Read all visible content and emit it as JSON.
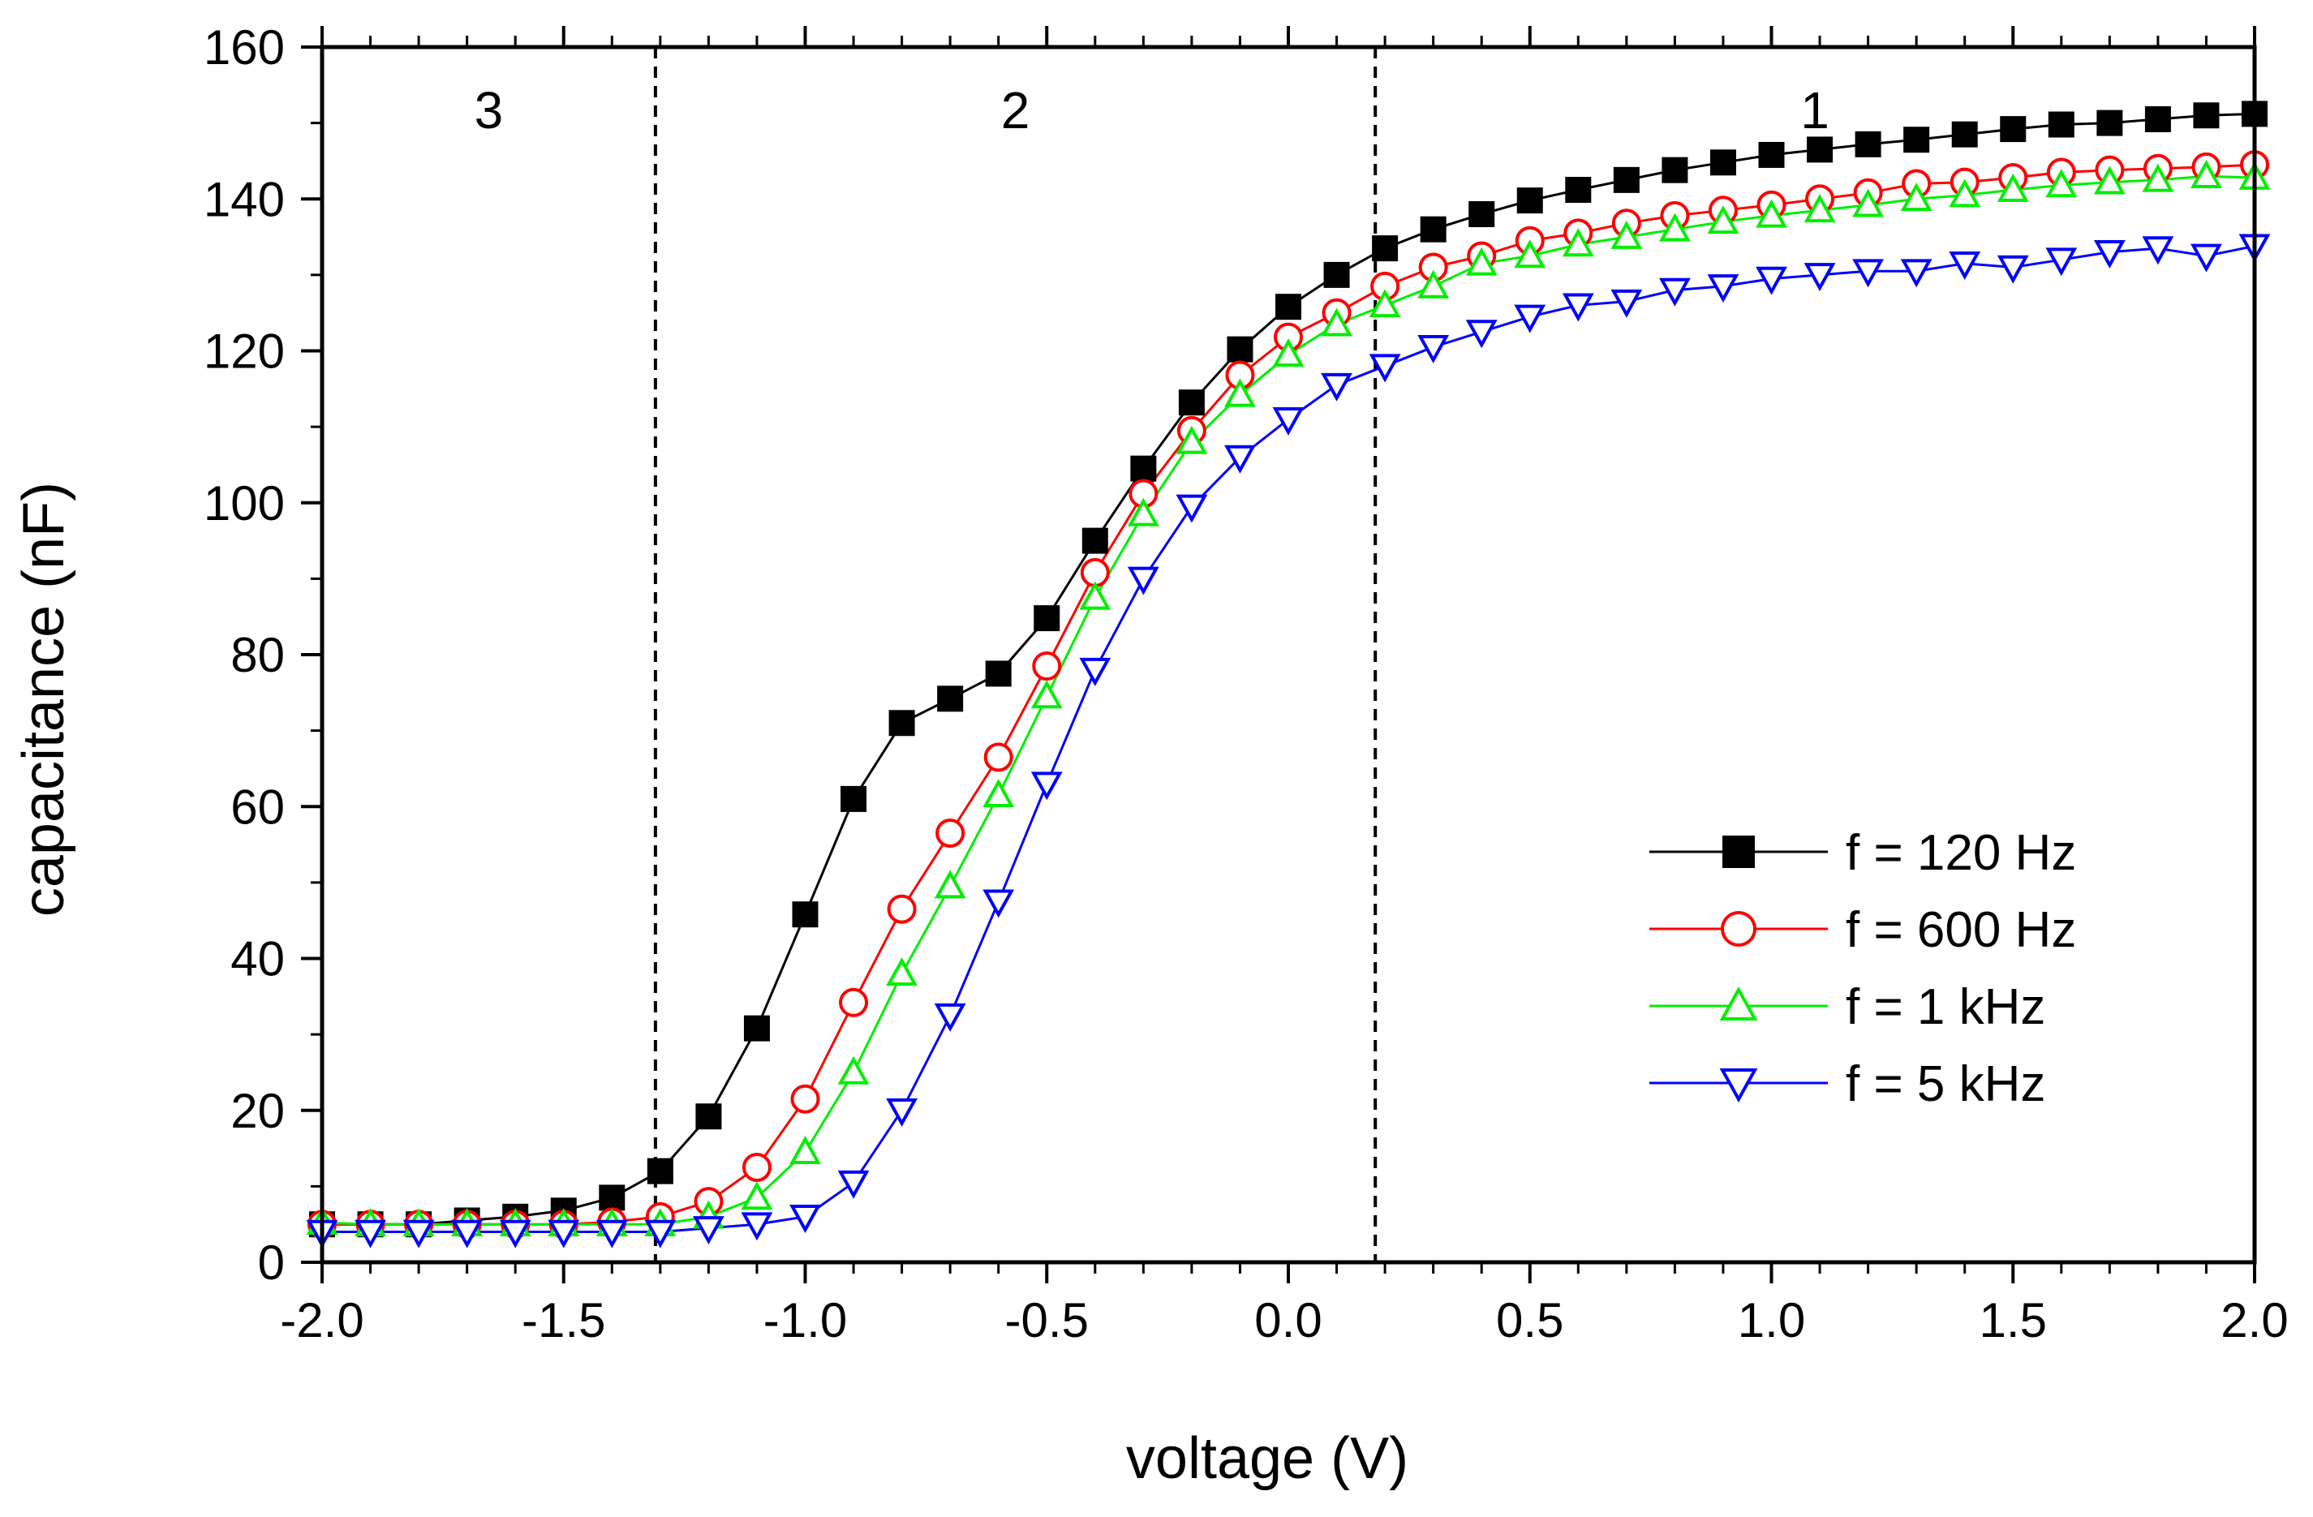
{
  "chart_data": {
    "type": "line",
    "title": "",
    "xlabel": "voltage (V)",
    "ylabel": "capacitance (nF)",
    "xlim": [
      -2.0,
      2.0
    ],
    "ylim": [
      0,
      160
    ],
    "x_ticks": [
      "-2.0",
      "-1.5",
      "-1.0",
      "-0.5",
      "0.0",
      "0.5",
      "1.0",
      "1.5",
      "2.0"
    ],
    "y_ticks": [
      "0",
      "20",
      "40",
      "60",
      "80",
      "100",
      "120",
      "140",
      "160"
    ],
    "grid": false,
    "legend_position": "bottom-right",
    "regions": [
      {
        "label": "3"
      },
      {
        "label": "2"
      },
      {
        "label": "1"
      }
    ],
    "region_boundaries": [
      -1.31,
      0.18
    ],
    "x": [
      -2.0,
      -1.9,
      -1.8,
      -1.7,
      -1.6,
      -1.5,
      -1.4,
      -1.3,
      -1.2,
      -1.1,
      -1.0,
      -0.9,
      -0.8,
      -0.7,
      -0.6,
      -0.5,
      -0.4,
      -0.3,
      -0.2,
      -0.1,
      0.0,
      0.1,
      0.2,
      0.3,
      0.4,
      0.5,
      0.6,
      0.7,
      0.8,
      0.9,
      1.0,
      1.1,
      1.2,
      1.3,
      1.4,
      1.5,
      1.6,
      1.7,
      1.8,
      1.9,
      2.0
    ],
    "series": [
      {
        "name": "f = 120 Hz",
        "color": "#000000",
        "marker": "filled-square",
        "values": [
          5,
          5,
          5,
          5.5,
          6,
          6.8,
          8.5,
          12,
          19.2,
          30.8,
          45.8,
          61,
          71,
          74.2,
          77.5,
          84.8,
          95,
          104.5,
          113.2,
          120.2,
          125.8,
          130,
          133.5,
          136,
          138,
          139.8,
          141.2,
          142.5,
          143.8,
          144.8,
          145.8,
          146.5,
          147.2,
          147.8,
          148.5,
          149.2,
          149.8,
          150,
          150.5,
          151,
          151.2
        ]
      },
      {
        "name": "f = 600 Hz",
        "color": "#ff0000",
        "marker": "open-circle",
        "values": [
          5,
          5,
          5,
          5,
          5,
          5,
          5.3,
          6,
          8,
          12.5,
          21.5,
          34.2,
          46.5,
          56.5,
          66.5,
          78.5,
          90.8,
          101.2,
          109.5,
          116.8,
          121.8,
          125,
          128.5,
          131,
          132.5,
          134.5,
          135.5,
          136.8,
          137.8,
          138.5,
          139.2,
          140,
          140.8,
          142,
          142.2,
          142.8,
          143.5,
          143.8,
          144,
          144.2,
          144.5
        ]
      },
      {
        "name": "f = 1 kHz",
        "color": "#00ee00",
        "marker": "open-triangle-up",
        "values": [
          5.2,
          5,
          5,
          5,
          5,
          5,
          5,
          5,
          6,
          8.5,
          14.5,
          25,
          38,
          49.5,
          61.5,
          74.5,
          87.5,
          98.5,
          108,
          114.2,
          119.5,
          123.5,
          126,
          128.5,
          131.5,
          132.5,
          134,
          135,
          136,
          137,
          137.8,
          138.5,
          139.2,
          140,
          140.5,
          141.2,
          141.8,
          142.2,
          142.5,
          143,
          142.8
        ]
      },
      {
        "name": "f = 5 kHz",
        "color": "#0000ff",
        "marker": "open-triangle-down",
        "values": [
          4,
          4,
          4,
          4,
          4,
          4,
          4,
          4,
          4.5,
          5,
          6,
          10.5,
          20,
          32.5,
          47.5,
          63,
          78,
          90,
          99.5,
          106,
          111,
          115.5,
          118,
          120.5,
          122.5,
          124.5,
          126,
          126.5,
          128,
          128.5,
          129.5,
          130,
          130.5,
          130.5,
          131.5,
          131,
          132,
          133,
          133.5,
          132.5,
          133.8
        ]
      }
    ]
  }
}
